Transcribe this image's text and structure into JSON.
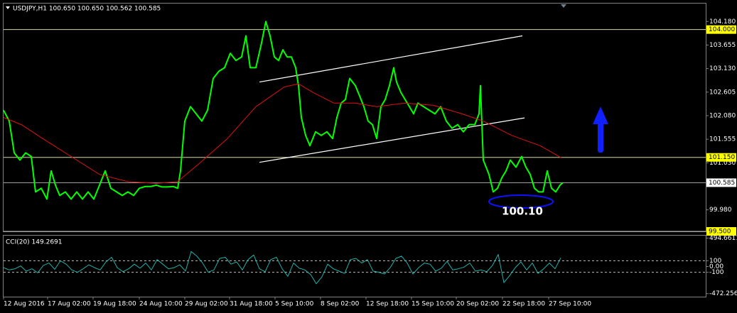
{
  "chart_data": [
    {
      "type": "line",
      "title": "USDJPY,H1  100.650 100.650 100.562 100.585",
      "xlim": [
        0,
        988
      ],
      "xticks": [
        {
          "value": 0,
          "label": "12 Aug 2016"
        },
        {
          "value": 62,
          "label": "17 Aug 02:00"
        },
        {
          "value": 126,
          "label": "19 Aug 18:00"
        },
        {
          "value": 191,
          "label": "24 Aug 10:00"
        },
        {
          "value": 255,
          "label": "29 Aug 02:00"
        },
        {
          "value": 318,
          "label": "31 Aug 18:00"
        },
        {
          "value": 382,
          "label": "5 Sep 10:00"
        },
        {
          "value": 446,
          "label": "8 Sep 02:00"
        },
        {
          "value": 510,
          "label": "12 Sep 18:00"
        },
        {
          "value": 574,
          "label": "15 Sep 10:00"
        },
        {
          "value": 637,
          "label": "20 Sep 02:00"
        },
        {
          "value": 702,
          "label": "22 Sep 18:00"
        },
        {
          "value": 767,
          "label": "27 Sep 10:00"
        }
      ],
      "ylim": [
        99.5,
        104.58
      ],
      "yticks": [
        {
          "value": 104.18,
          "label": "104.180"
        },
        {
          "value": 103.655,
          "label": "103.655"
        },
        {
          "value": 103.13,
          "label": "103.130"
        },
        {
          "value": 102.605,
          "label": "102.605"
        },
        {
          "value": 102.08,
          "label": "102.080"
        },
        {
          "value": 101.555,
          "label": "101.555"
        },
        {
          "value": 101.03,
          "label": "101.030"
        },
        {
          "value": 99.98,
          "label": "99.980"
        }
      ],
      "levels": [
        {
          "value": 104.0,
          "label": "104.000",
          "color": "#d8d8a0",
          "box": "#ffff00"
        },
        {
          "value": 101.15,
          "label": "101.150",
          "color": "#d8d8a0",
          "box": "#ffff00"
        },
        {
          "value": 100.585,
          "label": "100.585",
          "color": "#a0a0a0",
          "box": "#ffffff"
        },
        {
          "value": 99.5,
          "label": "99.500",
          "color": "#c0c0c0",
          "box": "#ffff00"
        }
      ],
      "series": [
        {
          "color": "#00ff00",
          "x": [
            0,
            8,
            15,
            23,
            31,
            39,
            45,
            53,
            61,
            67,
            73,
            79,
            87,
            95,
            103,
            111,
            119,
            127,
            135,
            143,
            151,
            159,
            167,
            175,
            183,
            191,
            199,
            207,
            215,
            223,
            231,
            239,
            245,
            249,
            255,
            263,
            271,
            279,
            287,
            295,
            303,
            311,
            319,
            327,
            335,
            341,
            347,
            355,
            363,
            369,
            375,
            381,
            387,
            393,
            399,
            405,
            411,
            415,
            419,
            425,
            431,
            439,
            447,
            455,
            463,
            469,
            475,
            481,
            487,
            495,
            501,
            507,
            513,
            519,
            525,
            531,
            537,
            543,
            549,
            553,
            559,
            565,
            571,
            577,
            583,
            591,
            599,
            607,
            615,
            623,
            631,
            639,
            647,
            655,
            663,
            669,
            671,
            675,
            683,
            689,
            695,
            701,
            707,
            713,
            721,
            729,
            735,
            741,
            747,
            753,
            759,
            765,
            771,
            777,
            783,
            787
          ],
          "values": [
            102.2,
            101.96,
            101.25,
            101.09,
            101.25,
            101.17,
            100.38,
            100.46,
            100.22,
            100.85,
            100.53,
            100.3,
            100.38,
            100.22,
            100.38,
            100.22,
            100.38,
            100.22,
            100.53,
            100.85,
            100.46,
            100.38,
            100.3,
            100.38,
            100.3,
            100.46,
            100.5,
            100.5,
            100.53,
            100.49,
            100.49,
            100.5,
            100.46,
            100.85,
            101.96,
            102.28,
            102.12,
            101.96,
            102.2,
            102.91,
            103.07,
            103.15,
            103.47,
            103.31,
            103.39,
            103.86,
            103.15,
            103.15,
            103.7,
            104.18,
            103.86,
            103.39,
            103.31,
            103.55,
            103.39,
            103.39,
            103.15,
            102.75,
            102.04,
            101.64,
            101.41,
            101.72,
            101.64,
            101.72,
            101.57,
            102.04,
            102.36,
            102.44,
            102.91,
            102.75,
            102.52,
            102.28,
            101.96,
            101.88,
            101.57,
            102.28,
            102.44,
            102.75,
            103.15,
            102.83,
            102.6,
            102.44,
            102.28,
            102.12,
            102.36,
            102.28,
            102.2,
            102.12,
            102.28,
            101.96,
            101.8,
            101.88,
            101.72,
            101.88,
            101.88,
            102.12,
            102.75,
            101.09,
            100.77,
            100.38,
            100.46,
            100.69,
            100.85,
            101.09,
            100.93,
            101.17,
            100.93,
            100.77,
            100.46,
            100.38,
            100.38,
            100.85,
            100.46,
            100.38,
            100.53,
            100.585
          ]
        },
        {
          "color": "#e01010",
          "x": [
            0,
            25,
            55,
            95,
            135,
            175,
            215,
            245,
            275,
            315,
            355,
            395,
            415,
            435,
            465,
            495,
            525,
            565,
            605,
            645,
            675,
            715,
            755,
            785
          ],
          "values": [
            102.04,
            101.88,
            101.57,
            101.17,
            100.77,
            100.61,
            100.57,
            100.61,
            101.01,
            101.57,
            102.28,
            102.72,
            102.79,
            102.6,
            102.36,
            102.36,
            102.28,
            102.36,
            102.31,
            102.12,
            101.96,
            101.64,
            101.41,
            101.14
          ]
        }
      ],
      "trendlines": [
        {
          "x": [
            360,
            730
          ],
          "values": [
            102.83,
            103.86
          ]
        },
        {
          "x": [
            360,
            733
          ],
          "values": [
            101.04,
            102.03
          ]
        }
      ],
      "annotation": "100.10"
    },
    {
      "type": "line",
      "title": "CCI(20) 149.2691",
      "xlim": [
        0,
        988
      ],
      "ylim": [
        -525,
        537
      ],
      "yticks": [
        494.6611,
        100,
        {
          "value": 0,
          "label": "0.00"
        },
        -100,
        -472.2561
      ],
      "levels": [
        100,
        -100
      ],
      "series": [
        {
          "color": "#20b2aa",
          "x": [
            0,
            8,
            16,
            24,
            32,
            40,
            48,
            56,
            64,
            72,
            80,
            88,
            96,
            104,
            112,
            120,
            128,
            136,
            144,
            152,
            160,
            168,
            176,
            184,
            192,
            200,
            208,
            216,
            224,
            232,
            240,
            248,
            256,
            264,
            272,
            280,
            288,
            296,
            304,
            312,
            320,
            328,
            336,
            344,
            352,
            360,
            368,
            376,
            384,
            392,
            400,
            408,
            416,
            424,
            432,
            440,
            448,
            456,
            464,
            472,
            480,
            488,
            496,
            504,
            512,
            520,
            528,
            536,
            544,
            552,
            560,
            568,
            576,
            584,
            592,
            600,
            608,
            616,
            624,
            632,
            640,
            648,
            656,
            664,
            672,
            680,
            688,
            696,
            704,
            712,
            720,
            728,
            736,
            744,
            752,
            760,
            768,
            776,
            784
          ],
          "values": [
            -20,
            -60,
            -40,
            10,
            -80,
            -40,
            -110,
            20,
            60,
            -50,
            100,
            40,
            -60,
            -100,
            -40,
            30,
            -20,
            -60,
            80,
            160,
            -20,
            -90,
            -40,
            40,
            -30,
            60,
            -60,
            120,
            40,
            -40,
            -20,
            30,
            -80,
            260,
            180,
            60,
            -100,
            -60,
            140,
            160,
            40,
            80,
            -60,
            120,
            200,
            -40,
            -90,
            120,
            160,
            -40,
            -170,
            60,
            -30,
            -60,
            -140,
            -300,
            -180,
            40,
            -40,
            -80,
            -120,
            120,
            140,
            60,
            120,
            -80,
            -100,
            -130,
            -20,
            140,
            180,
            60,
            -130,
            -20,
            60,
            40,
            -80,
            -30,
            90,
            -60,
            -40,
            -10,
            60,
            -80,
            -60,
            -90,
            20,
            210,
            -280,
            -160,
            -20,
            80,
            -60,
            60,
            -120,
            -40,
            60,
            -40,
            149.2691
          ]
        }
      ]
    }
  ]
}
